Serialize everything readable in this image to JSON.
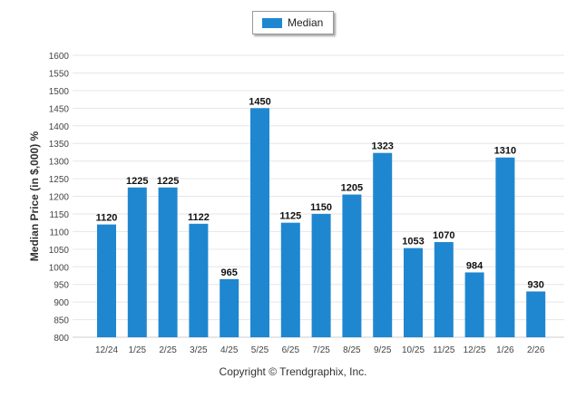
{
  "colors": {
    "bar": "#1f87d0",
    "grid": "#e6e6e6",
    "axis_text": "#444444",
    "label_text": "#111111"
  },
  "legend": {
    "label": "Median"
  },
  "copyright": "Copyright © Trendgraphix, Inc.",
  "chart_data": {
    "type": "bar",
    "title": "",
    "xlabel": "",
    "ylabel": "Median Price (in $,000) %",
    "ylim": [
      800,
      1600
    ],
    "ytick_step": 50,
    "grid": true,
    "legend_position": "top-center",
    "categories": [
      "12/24",
      "1/25",
      "2/25",
      "3/25",
      "4/25",
      "5/25",
      "6/25",
      "7/25",
      "8/25",
      "9/25",
      "10/25",
      "11/25",
      "12/25",
      "1/26",
      "2/26"
    ],
    "series": [
      {
        "name": "Median",
        "values": [
          1120,
          1225,
          1225,
          1122,
          965,
          1450,
          1125,
          1150,
          1205,
          1323,
          1053,
          1070,
          984,
          1310,
          930
        ]
      }
    ]
  }
}
